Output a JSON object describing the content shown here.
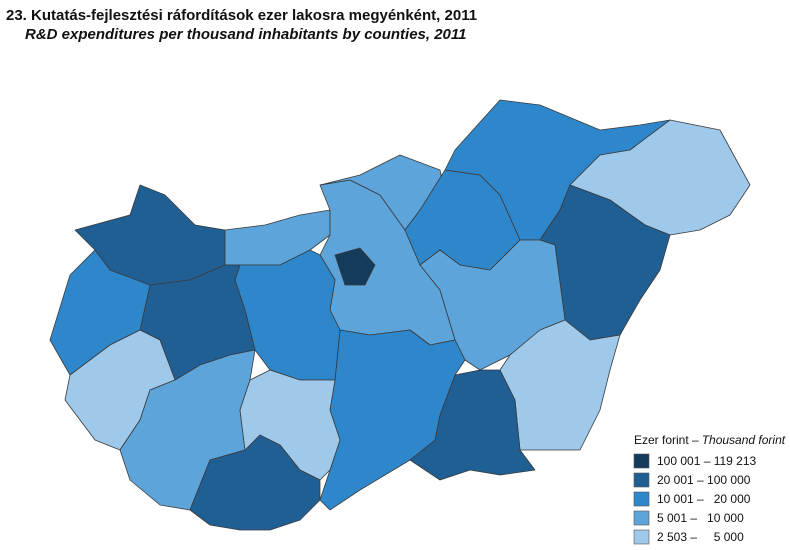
{
  "title": "23. Kutatás-fejlesztési ráfordítások ezer lakosra megyénként, 2011",
  "subtitle": "R&D expenditures per thousand inhabitants by counties,  2011",
  "legend": {
    "title": "Ezer forint –",
    "title_en": "Thousand forint",
    "items": [
      "100 001 – 119 213",
      "20 001 – 100 000",
      "10 001 –   20 000",
      "5 001 –   10 000",
      "2 503 –     5 000"
    ]
  }
}
